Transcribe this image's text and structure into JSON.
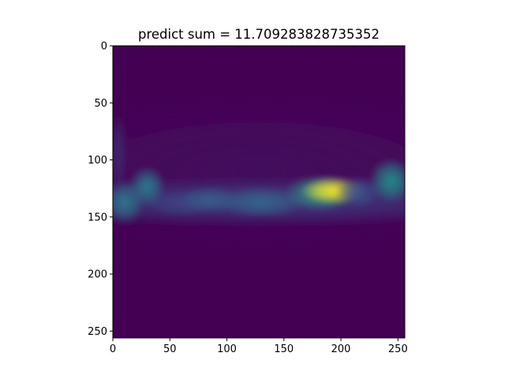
{
  "chart_data": {
    "type": "heatmap",
    "title": "predict sum = 11.709283828735352",
    "xlabel": "",
    "ylabel": "",
    "xlim": [
      0,
      256
    ],
    "ylim": [
      256,
      0
    ],
    "x_ticks": [
      "0",
      "50",
      "100",
      "150",
      "200",
      "250"
    ],
    "y_ticks": [
      "0",
      "50",
      "100",
      "150",
      "200",
      "250"
    ],
    "colormap": "viridis",
    "background_color": "#440154",
    "hotspots": [
      {
        "x": 193,
        "y": 127,
        "sx": 14,
        "sy": 6,
        "value": 1.0
      },
      {
        "x": 182,
        "y": 129,
        "sx": 16,
        "sy": 8,
        "value": 0.55
      },
      {
        "x": 244,
        "y": 118,
        "sx": 10,
        "sy": 10,
        "value": 0.5
      },
      {
        "x": 30,
        "y": 123,
        "sx": 8,
        "sy": 9,
        "value": 0.42
      },
      {
        "x": 10,
        "y": 137,
        "sx": 9,
        "sy": 10,
        "value": 0.4
      },
      {
        "x": 85,
        "y": 135,
        "sx": 14,
        "sy": 6,
        "value": 0.3
      },
      {
        "x": 130,
        "y": 137,
        "sx": 20,
        "sy": 7,
        "value": 0.33
      },
      {
        "x": 60,
        "y": 138,
        "sx": 16,
        "sy": 6,
        "value": 0.2
      },
      {
        "x": 215,
        "y": 128,
        "sx": 10,
        "sy": 7,
        "value": 0.25
      },
      {
        "x": 128,
        "y": 136,
        "sx": 130,
        "sy": 11,
        "value": 0.18
      },
      {
        "x": 5,
        "y": 95,
        "sx": 4,
        "sy": 18,
        "value": 0.12
      },
      {
        "x": 128,
        "y": 110,
        "sx": 120,
        "sy": 35,
        "value": 0.04
      }
    ]
  }
}
